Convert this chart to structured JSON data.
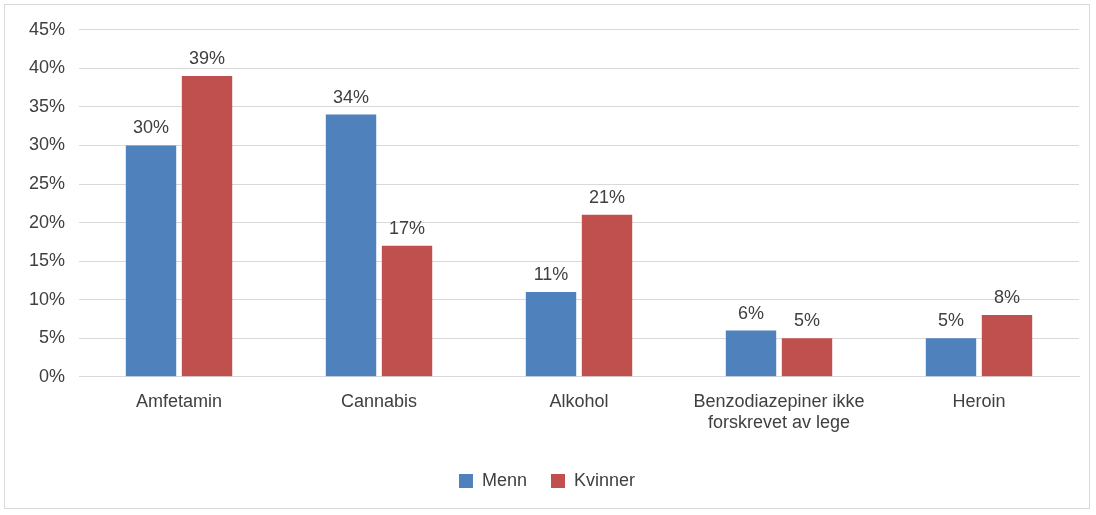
{
  "chart_data": {
    "type": "bar",
    "categories": [
      "Amfetamin",
      "Cannabis",
      "Alkohol",
      "Benzodiazepiner ikke forskrevet av lege",
      "Heroin"
    ],
    "series": [
      {
        "name": "Menn",
        "color": "#4f81bd",
        "values": [
          30,
          34,
          11,
          6,
          5
        ],
        "value_labels": [
          "30%",
          "34%",
          "11%",
          "6%",
          "5%"
        ]
      },
      {
        "name": "Kvinner",
        "color": "#c0504d",
        "values": [
          39,
          17,
          21,
          5,
          8
        ],
        "value_labels": [
          "39%",
          "17%",
          "21%",
          "5%",
          "8%"
        ]
      }
    ],
    "ylim": [
      0,
      45
    ],
    "yticks": [
      {
        "value": 0,
        "label": "0%"
      },
      {
        "value": 5,
        "label": "5%"
      },
      {
        "value": 10,
        "label": "10%"
      },
      {
        "value": 15,
        "label": "15%"
      },
      {
        "value": 20,
        "label": "20%"
      },
      {
        "value": 25,
        "label": "25%"
      },
      {
        "value": 30,
        "label": "30%"
      },
      {
        "value": 35,
        "label": "35%"
      },
      {
        "value": 40,
        "label": "40%"
      },
      {
        "value": 45,
        "label": "45%"
      }
    ],
    "grid": "y",
    "legend": "bottom"
  }
}
